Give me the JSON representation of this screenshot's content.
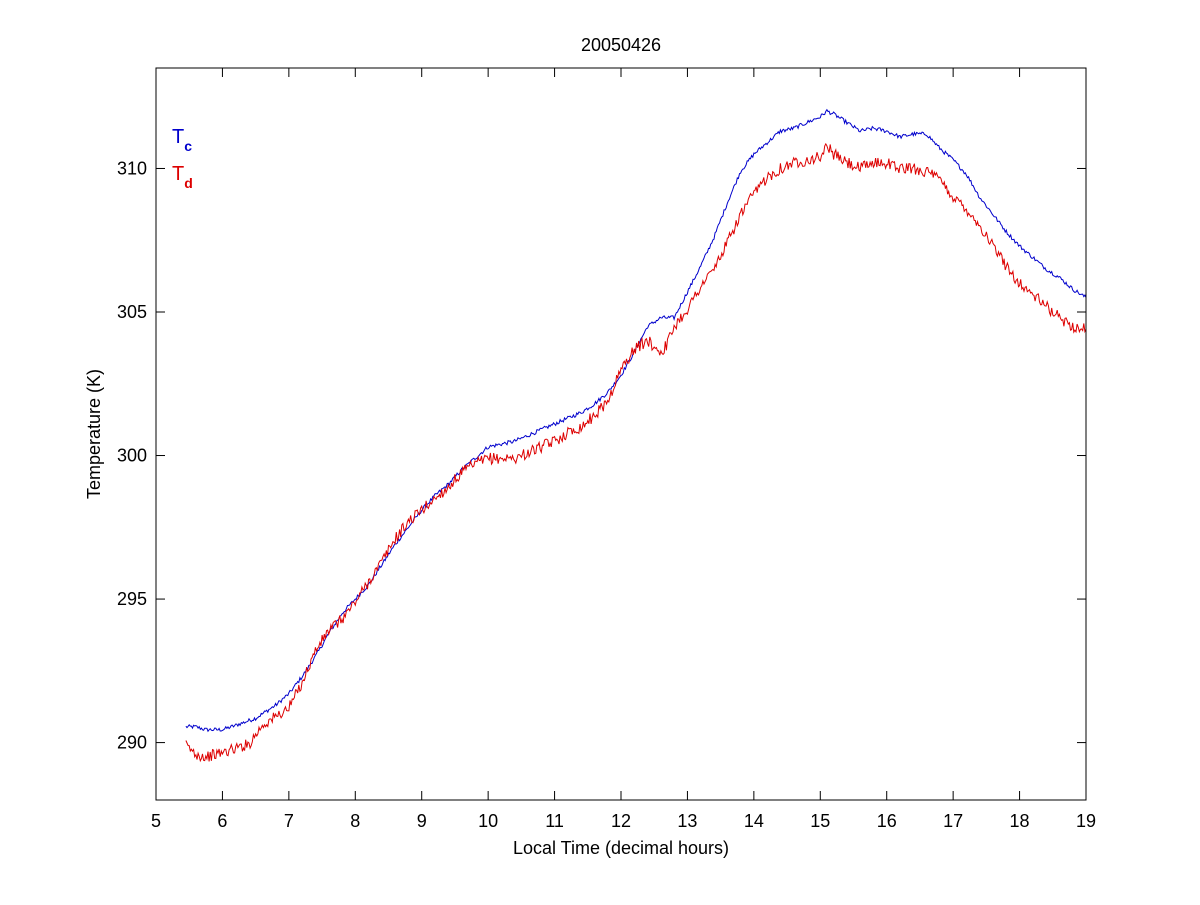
{
  "chart_data": {
    "type": "line",
    "title": "20050426",
    "xlabel": "Local Time (decimal hours)",
    "ylabel": "Temperature (K)",
    "xlim": [
      5,
      19
    ],
    "ylim": [
      288,
      313.5
    ],
    "xticks": [
      5,
      6,
      7,
      8,
      9,
      10,
      11,
      12,
      13,
      14,
      15,
      16,
      17,
      18,
      19
    ],
    "yticks": [
      290,
      295,
      300,
      305,
      310
    ],
    "grid": false,
    "legend": {
      "placement": "top-left",
      "entries": [
        {
          "base": "T",
          "sub": "c",
          "color": "#0000cc"
        },
        {
          "base": "T",
          "sub": "d",
          "color": "#dd0000"
        }
      ]
    },
    "series": [
      {
        "color": "#0000cc",
        "noise": 0.07,
        "x": [
          5.45,
          5.6,
          5.75,
          6.0,
          6.2,
          6.5,
          6.8,
          7.0,
          7.2,
          7.4,
          7.6,
          7.8,
          8.0,
          8.2,
          8.4,
          8.6,
          8.8,
          9.0,
          9.2,
          9.4,
          9.6,
          9.8,
          10.0,
          10.2,
          10.4,
          10.6,
          10.8,
          11.0,
          11.2,
          11.4,
          11.6,
          11.8,
          12.0,
          12.2,
          12.4,
          12.6,
          12.8,
          13.0,
          13.2,
          13.4,
          13.6,
          13.8,
          14.0,
          14.2,
          14.4,
          14.6,
          14.8,
          15.0,
          15.1,
          15.2,
          15.4,
          15.6,
          15.8,
          16.0,
          16.2,
          16.4,
          16.6,
          16.8,
          17.0,
          17.2,
          17.4,
          17.6,
          17.8,
          18.0,
          18.2,
          18.4,
          18.6,
          18.8,
          19.0
        ],
        "y": [
          290.55,
          290.55,
          290.45,
          290.45,
          290.6,
          290.85,
          291.3,
          291.7,
          292.3,
          293.0,
          293.8,
          294.5,
          295.0,
          295.5,
          296.2,
          296.9,
          297.5,
          298.1,
          298.6,
          299.0,
          299.5,
          299.9,
          300.3,
          300.4,
          300.5,
          300.7,
          300.9,
          301.1,
          301.3,
          301.5,
          301.8,
          302.2,
          302.8,
          303.6,
          304.5,
          304.8,
          304.8,
          305.7,
          306.6,
          307.6,
          308.8,
          309.9,
          310.5,
          310.9,
          311.3,
          311.4,
          311.6,
          311.8,
          312.0,
          311.9,
          311.6,
          311.3,
          311.4,
          311.3,
          311.1,
          311.2,
          311.2,
          310.7,
          310.3,
          309.8,
          309.0,
          308.4,
          307.8,
          307.3,
          306.9,
          306.5,
          306.2,
          305.8,
          305.5
        ]
      },
      {
        "color": "#dd0000",
        "noise": 0.2,
        "x": [
          5.45,
          5.6,
          5.75,
          6.0,
          6.2,
          6.4,
          6.6,
          6.8,
          7.0,
          7.2,
          7.4,
          7.6,
          7.8,
          8.0,
          8.2,
          8.4,
          8.6,
          8.8,
          9.0,
          9.2,
          9.4,
          9.6,
          9.8,
          10.0,
          10.2,
          10.4,
          10.6,
          10.8,
          11.0,
          11.2,
          11.4,
          11.6,
          11.8,
          12.0,
          12.2,
          12.4,
          12.6,
          12.7,
          12.8,
          13.0,
          13.2,
          13.4,
          13.6,
          13.8,
          14.0,
          14.2,
          14.4,
          14.6,
          14.8,
          15.0,
          15.1,
          15.2,
          15.4,
          15.6,
          15.8,
          16.0,
          16.2,
          16.4,
          16.6,
          16.8,
          17.0,
          17.2,
          17.4,
          17.6,
          17.8,
          18.0,
          18.2,
          18.4,
          18.6,
          18.8,
          19.0
        ],
        "y": [
          289.9,
          289.6,
          289.5,
          289.65,
          289.8,
          289.95,
          290.6,
          290.9,
          291.2,
          292.1,
          293.2,
          293.9,
          294.3,
          294.9,
          295.6,
          296.3,
          297.1,
          297.7,
          298.1,
          298.5,
          298.9,
          299.4,
          299.7,
          299.9,
          299.9,
          299.9,
          300.1,
          300.3,
          300.5,
          300.8,
          301.0,
          301.4,
          301.9,
          303.0,
          303.7,
          304.0,
          303.6,
          303.9,
          304.5,
          305.1,
          305.9,
          306.5,
          307.4,
          308.4,
          309.1,
          309.7,
          310.0,
          310.2,
          310.3,
          310.4,
          310.8,
          310.5,
          310.2,
          310.0,
          310.2,
          310.2,
          310.0,
          310.0,
          309.9,
          309.6,
          309.0,
          308.6,
          308.0,
          307.3,
          306.6,
          306.0,
          305.6,
          305.2,
          304.8,
          304.5,
          304.4
        ]
      }
    ]
  }
}
